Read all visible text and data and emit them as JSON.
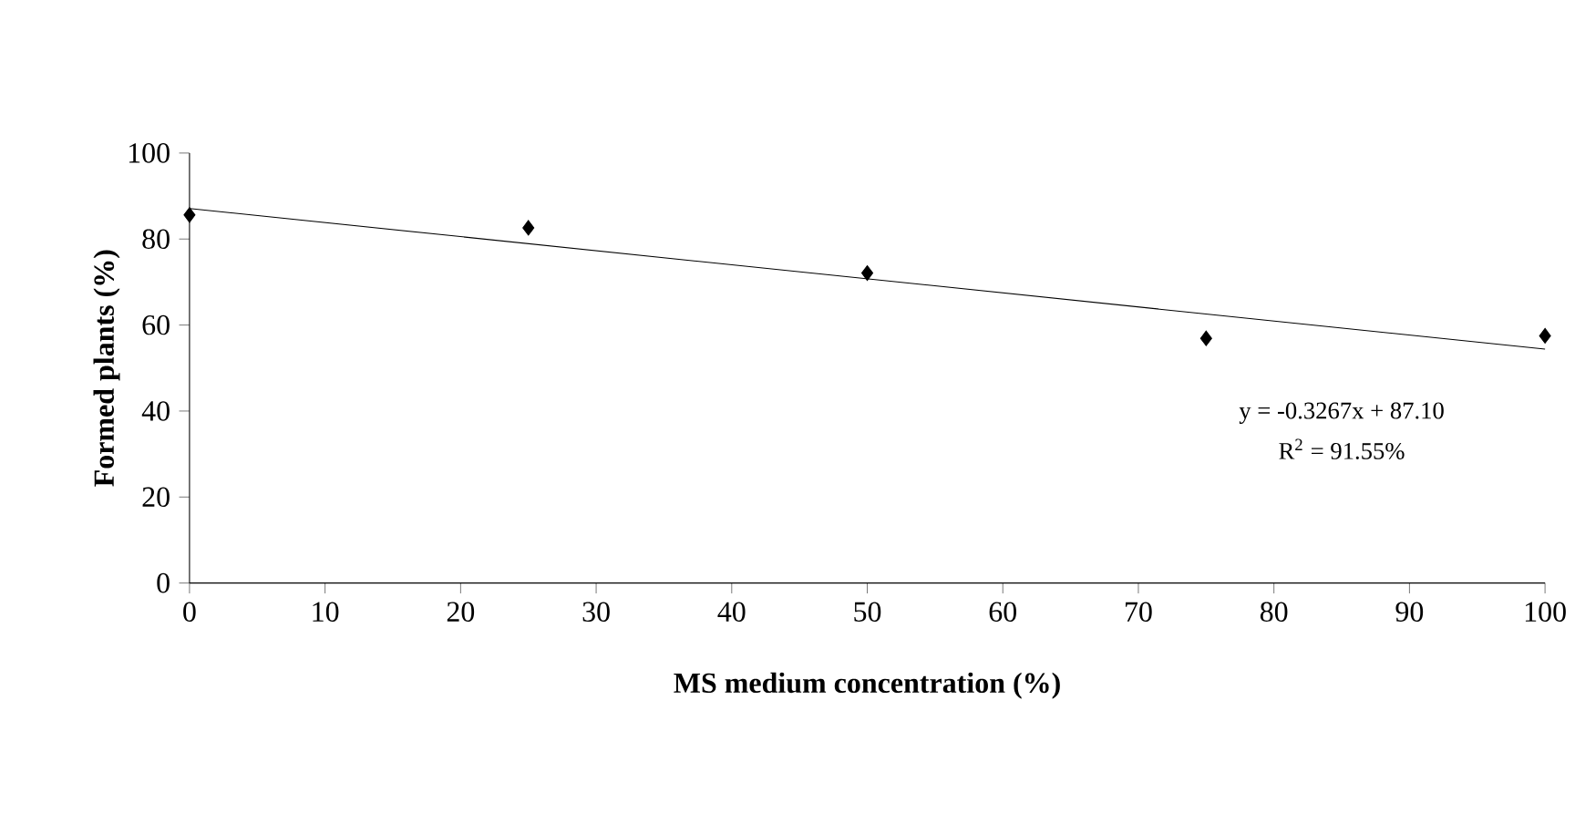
{
  "chart_data": {
    "type": "scatter",
    "xlabel": "MS medium concentration (%)",
    "ylabel": "Formed plants (%)",
    "xlim": [
      0,
      100
    ],
    "ylim": [
      0,
      100
    ],
    "xticks": [
      0,
      10,
      20,
      30,
      40,
      50,
      60,
      70,
      80,
      90,
      100
    ],
    "yticks": [
      0,
      20,
      40,
      60,
      80,
      100
    ],
    "series": [
      {
        "x": [
          0,
          25,
          50,
          75,
          100
        ],
        "values": [
          85.6,
          82.6,
          72.1,
          56.9,
          57.5
        ],
        "color": "#000000",
        "marker": "diamond"
      },
      {
        "type": "line",
        "x": [
          0,
          100
        ],
        "values": [
          87.1,
          54.4
        ],
        "color": "#000000",
        "marker": "none",
        "line_style": "solid"
      }
    ],
    "annotations": [
      "y = -0.3267x + 87.10",
      "R$^{2}$ = 91.55%"
    ]
  }
}
